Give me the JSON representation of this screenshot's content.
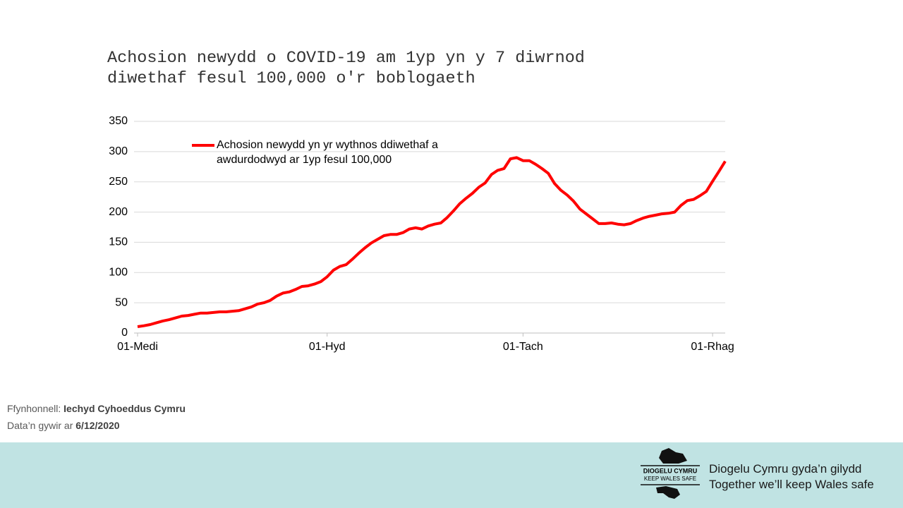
{
  "chart_data": {
    "type": "line",
    "title": "Achosion newydd o COVID-19 am 1yp yn y 7 diwrnod diwethaf fesul 100,000 o'r boblogaeth",
    "categories": [
      "01-Medi",
      null,
      null,
      null,
      null,
      null,
      null,
      null,
      null,
      null,
      null,
      null,
      null,
      null,
      null,
      null,
      null,
      null,
      null,
      null,
      null,
      null,
      null,
      null,
      null,
      null,
      null,
      null,
      null,
      null,
      "01-Hyd",
      null,
      null,
      null,
      null,
      null,
      null,
      null,
      null,
      null,
      null,
      null,
      null,
      null,
      null,
      null,
      null,
      null,
      null,
      null,
      null,
      null,
      null,
      null,
      null,
      null,
      null,
      null,
      null,
      null,
      null,
      "01-Tach",
      null,
      null,
      null,
      null,
      null,
      null,
      null,
      null,
      null,
      null,
      null,
      null,
      null,
      null,
      null,
      null,
      null,
      null,
      null,
      null,
      null,
      null,
      null,
      null,
      null,
      null,
      null,
      null,
      null,
      "01-Rhag",
      null,
      null
    ],
    "series": [
      {
        "name": "Achosion newydd yn yr wythnos ddiwethaf a awdurdodwyd ar 1yp fesul 100,000",
        "color": "#ff0000",
        "values": [
          10.5,
          12,
          14,
          17,
          20,
          22,
          25,
          28,
          29,
          31,
          33,
          33,
          34,
          35,
          35,
          36,
          37,
          40,
          43,
          48,
          50,
          54,
          61,
          66,
          68,
          72,
          77,
          78,
          81,
          85,
          93,
          104,
          110,
          113,
          122,
          132,
          141,
          149,
          155,
          161,
          163,
          163,
          166,
          172,
          174,
          172,
          177,
          180,
          182,
          191,
          202,
          214,
          223,
          231,
          241,
          248,
          262,
          269,
          272,
          288,
          290,
          285,
          285,
          279,
          272,
          264,
          247,
          236,
          228,
          218,
          205,
          197,
          189,
          181,
          181,
          182,
          180,
          179,
          181,
          186,
          190,
          193,
          195,
          197,
          198,
          200,
          211,
          219,
          221,
          227,
          234,
          251,
          267,
          284
        ]
      }
    ],
    "ylim": [
      0,
      350
    ],
    "yticks": [
      0,
      50,
      100,
      150,
      200,
      250,
      300,
      350
    ],
    "grid": true,
    "legend": "top-left"
  },
  "footer": {
    "source_label": "Ffynhonnell:",
    "source": "Iechyd Cyhoeddus Cymru",
    "date_label": "Data’n gywir ar",
    "date": "6/12/2020"
  },
  "banner": {
    "logo_top": "DIOGELU CYMRU",
    "logo_bottom": "KEEP WALES SAFE",
    "slogan_cy": "Diogelu Cymru gyda’n gilydd",
    "slogan_en": "Together we’ll keep Wales safe"
  }
}
